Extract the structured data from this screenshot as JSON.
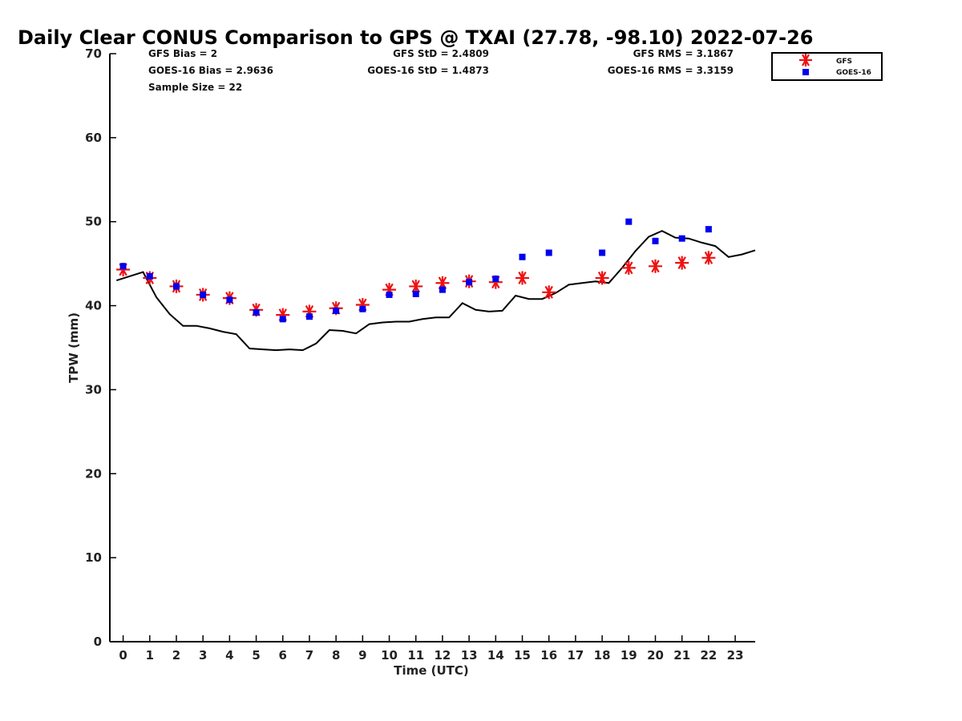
{
  "chart_data": {
    "type": "line",
    "title": "Daily Clear CONUS Comparison to GPS @ TXAI (27.78, -98.10) 2022-07-26",
    "xlabel": "Time (UTC)",
    "ylabel": "TPW (mm)",
    "xlim": [
      -0.5,
      23.75
    ],
    "ylim": [
      0,
      70
    ],
    "x_ticks": [
      0,
      1,
      2,
      3,
      4,
      5,
      6,
      7,
      8,
      9,
      10,
      11,
      12,
      13,
      14,
      15,
      16,
      17,
      18,
      19,
      20,
      21,
      22,
      23
    ],
    "x_tick_labels": [
      "0",
      "1",
      "2",
      "3",
      "4",
      "5",
      "6",
      "7",
      "8",
      "9",
      "10",
      "11",
      "12",
      "13",
      "14",
      "15",
      "16",
      "17",
      "18",
      "19",
      "20",
      "21",
      "22",
      "23"
    ],
    "y_ticks": [
      0,
      10,
      20,
      30,
      40,
      50,
      60,
      70
    ],
    "y_tick_labels": [
      "0",
      "10",
      "20",
      "30",
      "40",
      "50",
      "60",
      "70"
    ],
    "stats": {
      "gfs_bias": "GFS Bias = 2",
      "goes_bias": "GOES-16 Bias = 2.9636",
      "sample_size": "Sample Size = 22",
      "gfs_std": "GFS StD = 2.4809",
      "goes_std": "GOES-16 StD = 1.4873",
      "gfs_rms": "GFS RMS = 3.1867",
      "goes_rms": "GOES-16 RMS = 3.3159"
    },
    "legend": {
      "position": "top-right",
      "entries": [
        {
          "name": "GFS",
          "marker": "asterisk",
          "color": "#ee1111"
        },
        {
          "name": "GOES-16",
          "marker": "square",
          "color": "#0000ee"
        }
      ]
    },
    "series": [
      {
        "name": "GPS",
        "kind": "line",
        "color": "#000000",
        "x": [
          -0.25,
          0.75,
          1.25,
          1.75,
          2.25,
          2.75,
          3.25,
          3.75,
          4.25,
          4.75,
          5.25,
          5.75,
          6.25,
          6.75,
          7.25,
          7.75,
          8.25,
          8.75,
          9.25,
          9.75,
          10.25,
          10.75,
          11.25,
          11.75,
          12.25,
          12.75,
          13.25,
          13.75,
          14.25,
          14.75,
          15.25,
          15.75,
          16.25,
          16.75,
          17.25,
          17.75,
          18.25,
          18.75,
          19.25,
          19.75,
          20.25,
          20.75,
          21.25,
          21.75,
          22.25,
          22.75,
          23.25,
          23.75
        ],
        "values": [
          43.0,
          44.0,
          41.0,
          39.0,
          37.6,
          37.6,
          37.3,
          36.9,
          36.6,
          34.9,
          34.8,
          34.7,
          34.8,
          34.7,
          35.5,
          37.1,
          37.0,
          36.7,
          37.8,
          38.0,
          38.1,
          38.1,
          38.4,
          38.6,
          38.6,
          40.3,
          39.5,
          39.3,
          39.4,
          41.2,
          40.8,
          40.8,
          41.5,
          42.5,
          42.7,
          42.9,
          42.7,
          44.5,
          46.5,
          48.2,
          48.9,
          48.1,
          48.0,
          47.5,
          47.1,
          45.8,
          46.1,
          46.6
        ]
      },
      {
        "name": "GFS",
        "kind": "scatter",
        "marker": "asterisk",
        "color": "#ee1111",
        "x": [
          0,
          1,
          2,
          3,
          4,
          5,
          6,
          7,
          8,
          9,
          10,
          11,
          12,
          13,
          14,
          15,
          16,
          18,
          19,
          20,
          21,
          22
        ],
        "values": [
          44.3,
          43.3,
          42.3,
          41.3,
          40.9,
          39.5,
          38.9,
          39.3,
          39.7,
          40.1,
          41.9,
          42.3,
          42.7,
          42.9,
          42.8,
          43.3,
          41.6,
          43.3,
          44.5,
          44.7,
          45.1,
          45.7
        ]
      },
      {
        "name": "GOES-16",
        "kind": "scatter",
        "marker": "square",
        "color": "#0000ee",
        "x": [
          0,
          1,
          2,
          3,
          4,
          5,
          6,
          7,
          8,
          9,
          10,
          11,
          12,
          13,
          14,
          15,
          16,
          18,
          19,
          20,
          21,
          22
        ],
        "values": [
          44.7,
          43.5,
          42.3,
          41.3,
          40.7,
          39.2,
          38.4,
          38.7,
          39.4,
          39.6,
          41.3,
          41.4,
          41.9,
          42.8,
          43.2,
          45.8,
          46.3,
          46.3,
          50.0,
          47.7,
          48.0,
          49.1
        ]
      }
    ]
  }
}
